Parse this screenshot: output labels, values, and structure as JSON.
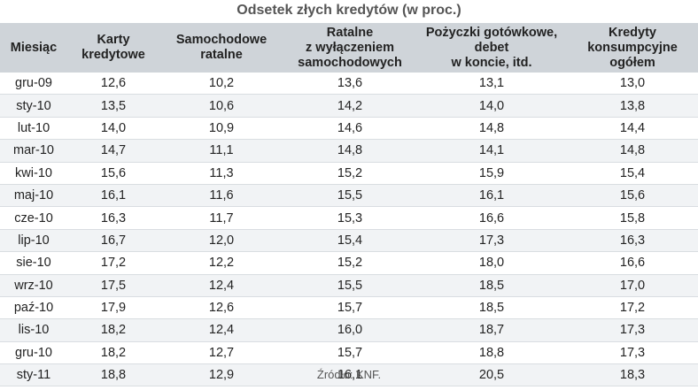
{
  "title": "Odsetek złych kredytów (w proc.)",
  "columns": [
    "Miesiąc",
    "Karty\nkredytowe",
    "Samochodowe\nratalne",
    "Ratalne\nz wyłączeniem\nsamochodowych",
    "Pożyczki gotówkowe,\ndebet\nw koncie, itd.",
    "Kredyty\nkonsumpcyjne\nogółem"
  ],
  "rows": [
    [
      "gru-09",
      "12,6",
      "10,2",
      "13,6",
      "13,1",
      "13,0"
    ],
    [
      "sty-10",
      "13,5",
      "10,6",
      "14,2",
      "14,0",
      "13,8"
    ],
    [
      "lut-10",
      "14,0",
      "10,9",
      "14,6",
      "14,8",
      "14,4"
    ],
    [
      "mar-10",
      "14,7",
      "11,1",
      "14,8",
      "14,1",
      "14,8"
    ],
    [
      "kwi-10",
      "15,6",
      "11,3",
      "15,2",
      "15,9",
      "15,4"
    ],
    [
      "maj-10",
      "16,1",
      "11,6",
      "15,5",
      "16,1",
      "15,6"
    ],
    [
      "cze-10",
      "16,3",
      "11,7",
      "15,3",
      "16,6",
      "15,8"
    ],
    [
      "lip-10",
      "16,7",
      "12,0",
      "15,4",
      "17,3",
      "16,3"
    ],
    [
      "sie-10",
      "17,2",
      "12,2",
      "15,2",
      "18,0",
      "16,6"
    ],
    [
      "wrz-10",
      "17,5",
      "12,4",
      "15,5",
      "18,5",
      "17,0"
    ],
    [
      "paź-10",
      "17,9",
      "12,6",
      "15,7",
      "18,5",
      "17,2"
    ],
    [
      "lis-10",
      "18,2",
      "12,4",
      "16,0",
      "18,7",
      "17,3"
    ],
    [
      "gru-10",
      "18,2",
      "12,7",
      "15,7",
      "18,8",
      "17,3"
    ],
    [
      "sty-11",
      "18,8",
      "12,9",
      "16,1",
      "20,5",
      "18,3"
    ]
  ],
  "source": "Źródło: KNF.",
  "colors": {
    "header_bg": "#cfd4d9",
    "stripe_bg": "#f1f3f5",
    "title": "#555555"
  }
}
